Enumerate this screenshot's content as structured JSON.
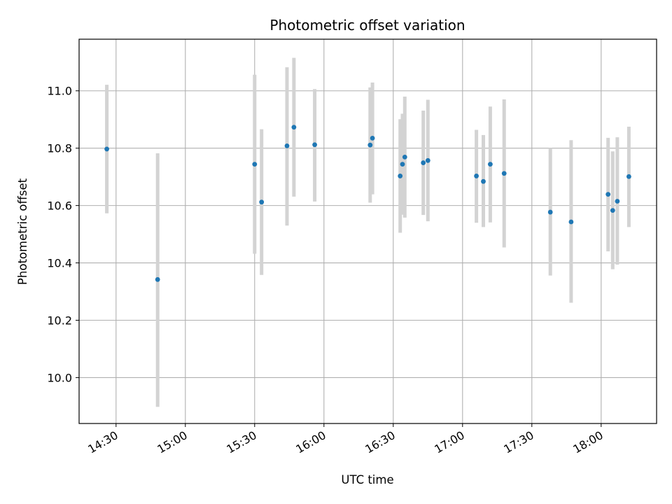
{
  "chart_data": {
    "type": "scatter",
    "title": "Photometric offset variation",
    "xlabel": "UTC time",
    "ylabel": "Photometric offset",
    "x_axis_kind": "time",
    "xlim": [
      "14:14",
      "18:24"
    ],
    "ylim": [
      9.84,
      11.18
    ],
    "x_ticks": [
      "14:30",
      "15:00",
      "15:30",
      "16:00",
      "16:30",
      "17:00",
      "17:30",
      "18:00"
    ],
    "y_ticks": [
      10.0,
      10.2,
      10.4,
      10.6,
      10.8,
      11.0
    ],
    "y_tick_labels": [
      "10.0",
      "10.2",
      "10.4",
      "10.6",
      "10.8",
      "11.0"
    ],
    "grid": true,
    "point_color": "#1f77b4",
    "errorbar_color": "#d3d3d3",
    "points": [
      {
        "x": "14:26",
        "y": 10.797,
        "ylow": 10.573,
        "yhigh": 11.021
      },
      {
        "x": "14:48",
        "y": 10.342,
        "ylow": 9.898,
        "yhigh": 10.782
      },
      {
        "x": "15:30",
        "y": 10.744,
        "ylow": 10.432,
        "yhigh": 11.056
      },
      {
        "x": "15:33",
        "y": 10.612,
        "ylow": 10.358,
        "yhigh": 10.866
      },
      {
        "x": "15:44",
        "y": 10.808,
        "ylow": 10.53,
        "yhigh": 11.082
      },
      {
        "x": "15:47",
        "y": 10.873,
        "ylow": 10.631,
        "yhigh": 11.115
      },
      {
        "x": "15:56",
        "y": 10.812,
        "ylow": 10.614,
        "yhigh": 11.006
      },
      {
        "x": "16:20",
        "y": 10.811,
        "ylow": 10.61,
        "yhigh": 11.012
      },
      {
        "x": "16:21",
        "y": 10.835,
        "ylow": 10.639,
        "yhigh": 11.029
      },
      {
        "x": "16:33",
        "y": 10.703,
        "ylow": 10.505,
        "yhigh": 10.901
      },
      {
        "x": "16:34",
        "y": 10.744,
        "ylow": 10.568,
        "yhigh": 10.92
      },
      {
        "x": "16:35",
        "y": 10.769,
        "ylow": 10.558,
        "yhigh": 10.98
      },
      {
        "x": "16:43",
        "y": 10.749,
        "ylow": 10.567,
        "yhigh": 10.931
      },
      {
        "x": "16:45",
        "y": 10.757,
        "ylow": 10.545,
        "yhigh": 10.969
      },
      {
        "x": "17:06",
        "y": 10.703,
        "ylow": 10.54,
        "yhigh": 10.864
      },
      {
        "x": "17:09",
        "y": 10.684,
        "ylow": 10.525,
        "yhigh": 10.846
      },
      {
        "x": "17:12",
        "y": 10.744,
        "ylow": 10.541,
        "yhigh": 10.945
      },
      {
        "x": "17:18",
        "y": 10.712,
        "ylow": 10.454,
        "yhigh": 10.97
      },
      {
        "x": "17:38",
        "y": 10.577,
        "ylow": 10.356,
        "yhigh": 10.8
      },
      {
        "x": "17:47",
        "y": 10.543,
        "ylow": 10.261,
        "yhigh": 10.828
      },
      {
        "x": "18:03",
        "y": 10.639,
        "ylow": 10.44,
        "yhigh": 10.836
      },
      {
        "x": "18:05",
        "y": 10.583,
        "ylow": 10.378,
        "yhigh": 10.789
      },
      {
        "x": "18:07",
        "y": 10.615,
        "ylow": 10.394,
        "yhigh": 10.838
      },
      {
        "x": "18:12",
        "y": 10.701,
        "ylow": 10.525,
        "yhigh": 10.875
      }
    ]
  }
}
